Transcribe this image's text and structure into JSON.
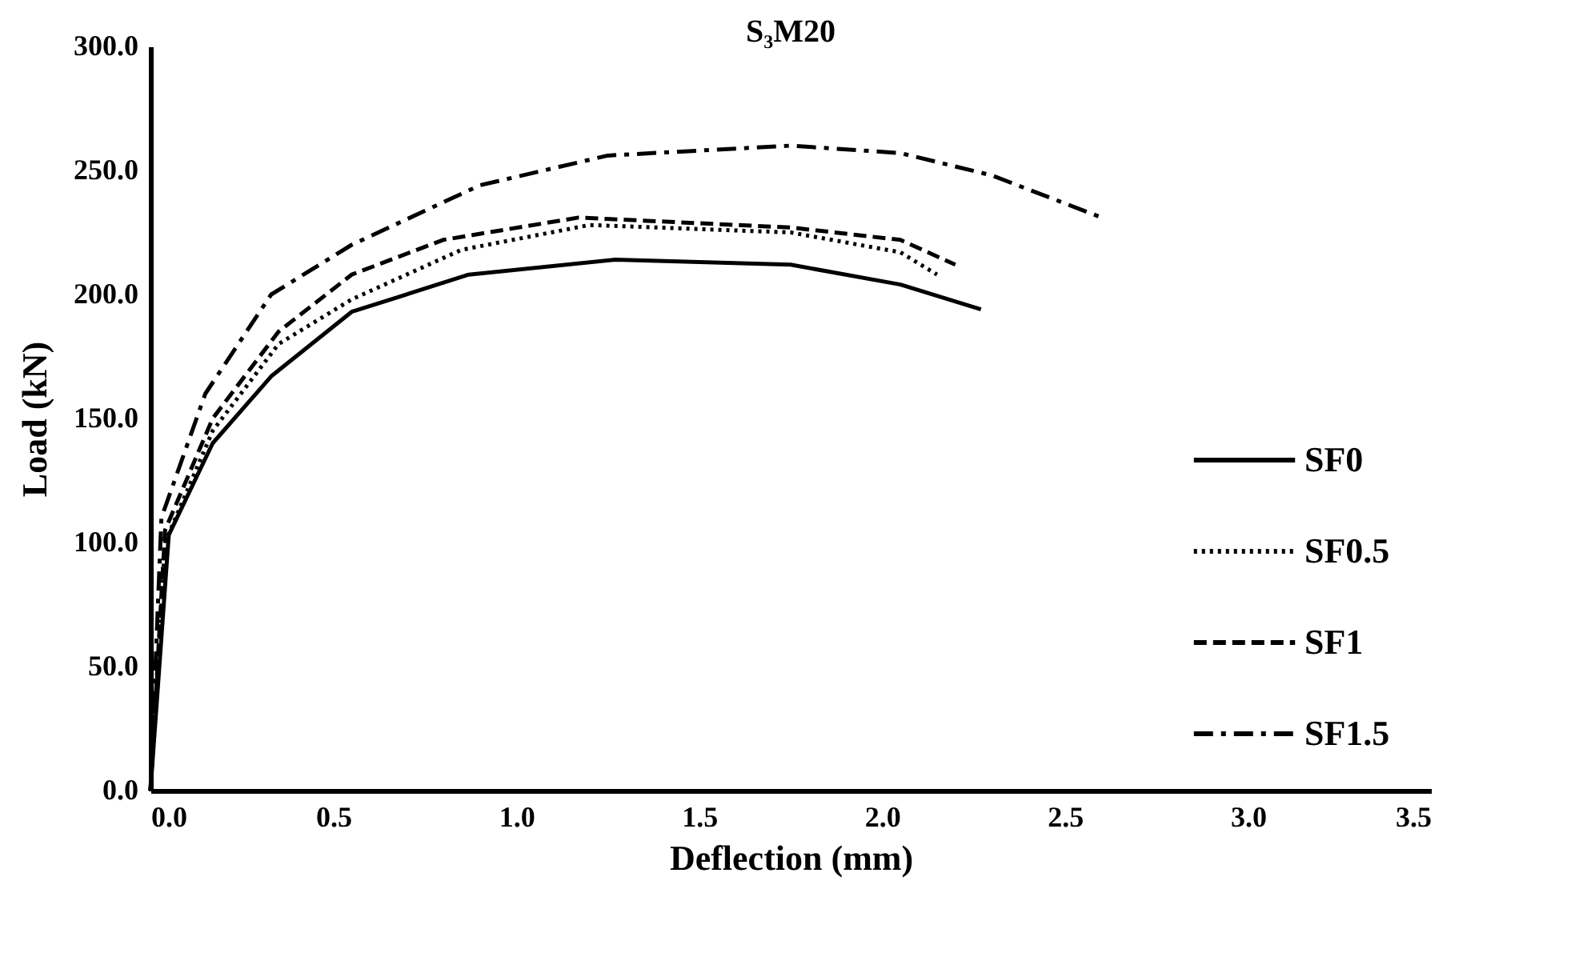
{
  "chart_data": {
    "type": "line",
    "title": "S₃M20",
    "xlabel": "Deflection (mm)",
    "ylabel": "Load (kN)",
    "xlim": [
      0,
      3.5
    ],
    "xticks": [
      {
        "value": 0,
        "label": "0.0"
      },
      {
        "value": 0.5,
        "label": "0.5"
      },
      {
        "value": 1,
        "label": "1.0"
      },
      {
        "value": 1.5,
        "label": "1.5"
      },
      {
        "value": 2,
        "label": "2.0"
      },
      {
        "value": 2.5,
        "label": "2.5"
      },
      {
        "value": 3,
        "label": "3.0"
      },
      {
        "value": 3.5,
        "label": "3.5"
      }
    ],
    "ylim": [
      0,
      300
    ],
    "yticks": [
      {
        "value": 0,
        "label": "0.0"
      },
      {
        "value": 50,
        "label": "50.0"
      },
      {
        "value": 100,
        "label": "100.0"
      },
      {
        "value": 150,
        "label": "150.0"
      },
      {
        "value": 200,
        "label": "200.0"
      },
      {
        "value": 250,
        "label": "250.0"
      },
      {
        "value": 300,
        "label": "300.0"
      }
    ],
    "grid": false,
    "legend": "right",
    "marker": "none",
    "series": [
      {
        "name": "SF0",
        "color": "#000000",
        "line_style": "solid",
        "x": [
          0,
          0.05,
          0.17,
          0.33,
          0.55,
          0.87,
          1.27,
          1.75,
          2.05,
          2.27
        ],
        "values": [
          0,
          103,
          140,
          167,
          193,
          208,
          214,
          212,
          204,
          194
        ]
      },
      {
        "name": "SF0.5",
        "color": "#000000",
        "line_style": "dotted",
        "x": [
          0,
          0.04,
          0.17,
          0.35,
          0.55,
          0.85,
          1.2,
          1.75,
          2.05,
          2.15
        ],
        "values": [
          0,
          100,
          145,
          180,
          198,
          218,
          228,
          225,
          217,
          208
        ]
      },
      {
        "name": "SF1",
        "color": "#000000",
        "line_style": "dashed",
        "x": [
          0,
          0.04,
          0.17,
          0.35,
          0.55,
          0.8,
          1.17,
          1.75,
          2.05,
          2.2
        ],
        "values": [
          0,
          105,
          150,
          185,
          208,
          222,
          231,
          227,
          222,
          212
        ]
      },
      {
        "name": "SF1.5",
        "color": "#000000",
        "line_style": "dashdot",
        "x": [
          0,
          0.03,
          0.15,
          0.33,
          0.55,
          0.9,
          1.25,
          1.75,
          2.05,
          2.3,
          2.6
        ],
        "values": [
          0,
          110,
          160,
          200,
          220,
          244,
          256,
          260,
          257,
          248,
          231
        ]
      }
    ]
  }
}
